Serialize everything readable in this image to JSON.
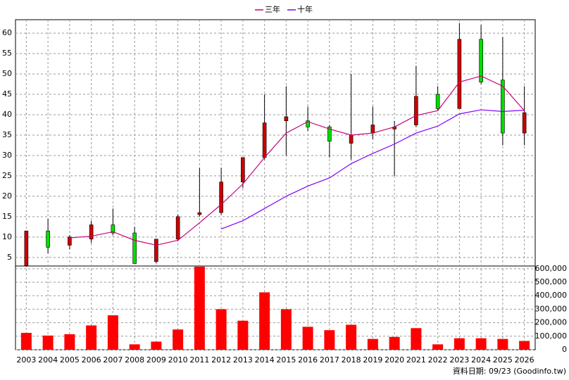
{
  "chart_data": {
    "type": "candlestick",
    "categories": [
      "2003",
      "2004",
      "2005",
      "2006",
      "2007",
      "2008",
      "2009",
      "2010",
      "2011",
      "2012",
      "2013",
      "2014",
      "2015",
      "2016",
      "2017",
      "2018",
      "2019",
      "2020",
      "2021",
      "2022",
      "2023",
      "2024",
      "2025",
      "2026"
    ],
    "ohlc": {
      "open": [
        3,
        11.5,
        8,
        9.5,
        13,
        11,
        4,
        9.5,
        15.5,
        16,
        23.5,
        29.5,
        38.5,
        38.5,
        37,
        33,
        35.5,
        36.5,
        37.5,
        45,
        41.5,
        58.5,
        48.5,
        35.5
      ],
      "high": [
        11.5,
        14.5,
        10.5,
        14,
        17,
        12.5,
        9.5,
        15.5,
        27,
        27,
        29.5,
        45,
        47,
        42,
        37.5,
        50,
        42,
        38.5,
        52,
        47,
        62.5,
        62,
        59,
        47
      ],
      "low": [
        2.7,
        6,
        7,
        8.5,
        10.5,
        3.5,
        3.5,
        9,
        15,
        15.5,
        22,
        29,
        30,
        36,
        29.5,
        29,
        34,
        25,
        37,
        41,
        41.5,
        47.5,
        32.5,
        32.5
      ],
      "close": [
        11.5,
        7.5,
        10,
        13,
        11,
        3.5,
        9.5,
        15,
        16,
        23.5,
        29.5,
        38,
        39.5,
        37,
        33.5,
        35,
        37.5,
        37,
        44.5,
        41.5,
        58.5,
        48,
        35.5,
        40.5
      ]
    },
    "up_color": "#cc0000",
    "down_color": "#00dd00",
    "series": [
      {
        "name": "三年",
        "color": "#cc0077",
        "values": [
          null,
          null,
          9.8,
          10.2,
          11.3,
          9.2,
          8,
          9.2,
          13.5,
          18,
          23,
          29.5,
          35.5,
          38.3,
          36.5,
          35,
          35.5,
          37,
          39.8,
          41,
          48,
          49.5,
          47,
          41
        ]
      },
      {
        "name": "十年",
        "color": "#8000ff",
        "values": [
          null,
          null,
          null,
          null,
          null,
          null,
          null,
          null,
          null,
          12,
          14,
          17,
          20,
          22.5,
          24.5,
          28,
          30.5,
          32.8,
          35.5,
          37.2,
          40.2,
          41.2,
          40.8,
          41.1
        ]
      }
    ],
    "ylim": [
      2.9,
      63.3
    ],
    "yticks": [
      5,
      10,
      15,
      20,
      25,
      30,
      35,
      40,
      45,
      50,
      55,
      60
    ],
    "volume": {
      "color": "#ff0000",
      "values": [
        125000,
        105000,
        115000,
        180000,
        255000,
        40000,
        60000,
        150000,
        615000,
        300000,
        215000,
        425000,
        300000,
        170000,
        145000,
        185000,
        80000,
        95000,
        160000,
        40000,
        85000,
        85000,
        80000,
        65000
      ],
      "ylim": [
        0,
        620000
      ],
      "yticks": [
        {
          "value": 0,
          "label": "0"
        },
        {
          "value": 100000,
          "label": "100,000"
        },
        {
          "value": 200000,
          "label": "200,000"
        },
        {
          "value": 300000,
          "label": "300,000"
        },
        {
          "value": 400000,
          "label": "400,000"
        },
        {
          "value": 500000,
          "label": "500,000"
        },
        {
          "value": 600000,
          "label": "600,000"
        }
      ]
    },
    "grid": true,
    "note": "資料日期: 09/23 (Goodinfo.tw)"
  }
}
